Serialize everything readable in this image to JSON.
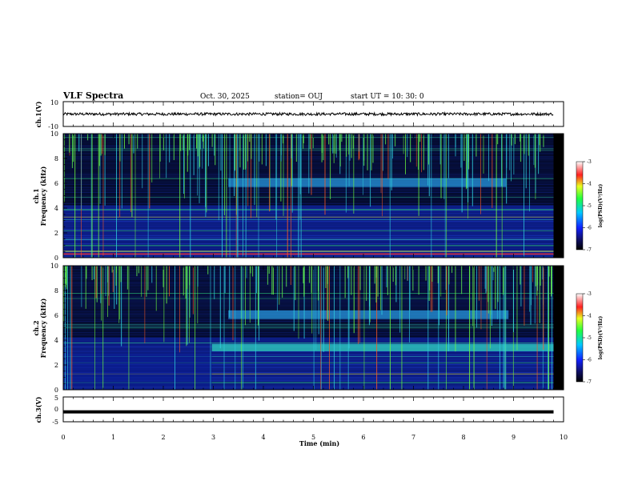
{
  "header": {
    "title": "VLF Spectra",
    "date": "Oct. 30, 2025",
    "station": "station= OUJ",
    "start": "start  UT  =   10: 30: 0"
  },
  "chart_data": [
    {
      "type": "line",
      "id": "ch1-waveform",
      "ylabel": "ch.1(V)",
      "ylim": [
        -10,
        10
      ],
      "y_ticks": [
        "10",
        "-10"
      ],
      "baseline": 0,
      "x_range_min": [
        0,
        9.8
      ]
    },
    {
      "type": "heatmap",
      "id": "ch1-spectrogram",
      "ylabel": "ch.1",
      "ylabel2": "Frequency (kHz)",
      "ylim": [
        0,
        10
      ],
      "y_ticks": [
        "0",
        "2",
        "4",
        "6",
        "8",
        "10"
      ],
      "x_range_min": [
        0,
        9.8
      ],
      "colorbar": {
        "label": "log(PSD)(V²/Hz)",
        "range": [
          -7,
          -3
        ],
        "ticks": [
          "-3",
          "-4",
          "-5",
          "-6",
          "-7"
        ]
      }
    },
    {
      "type": "heatmap",
      "id": "ch2-spectrogram",
      "ylabel": "ch.2",
      "ylabel2": "Frequency (kHz)",
      "ylim": [
        0,
        10
      ],
      "y_ticks": [
        "0",
        "2",
        "4",
        "6",
        "8",
        "10"
      ],
      "x_range_min": [
        0,
        9.8
      ],
      "colorbar": {
        "label": "log(PSD)(V²/Hz)",
        "range": [
          -7,
          -3
        ],
        "ticks": [
          "-3",
          "-4",
          "-5",
          "-6",
          "-7"
        ]
      }
    },
    {
      "type": "line",
      "id": "ch3-waveform",
      "ylabel": "ch.3(V)",
      "ylim": [
        -5,
        5
      ],
      "y_ticks": [
        "5",
        "0",
        "-5"
      ],
      "baseline": -1,
      "x_range_min": [
        0,
        9.8
      ]
    }
  ],
  "x_axis": {
    "label": "Time (min)",
    "range": [
      0,
      10
    ],
    "ticks": [
      "0",
      "1",
      "2",
      "3",
      "4",
      "5",
      "6",
      "7",
      "8",
      "9",
      "10"
    ]
  },
  "colors": {
    "background": "#000000",
    "spectrum_base": "#0a1a8c",
    "spectrum_cyan": "#33ccdd",
    "spectrum_green": "#66ee44",
    "spectrum_red": "#ff2222",
    "line": "#000000"
  }
}
